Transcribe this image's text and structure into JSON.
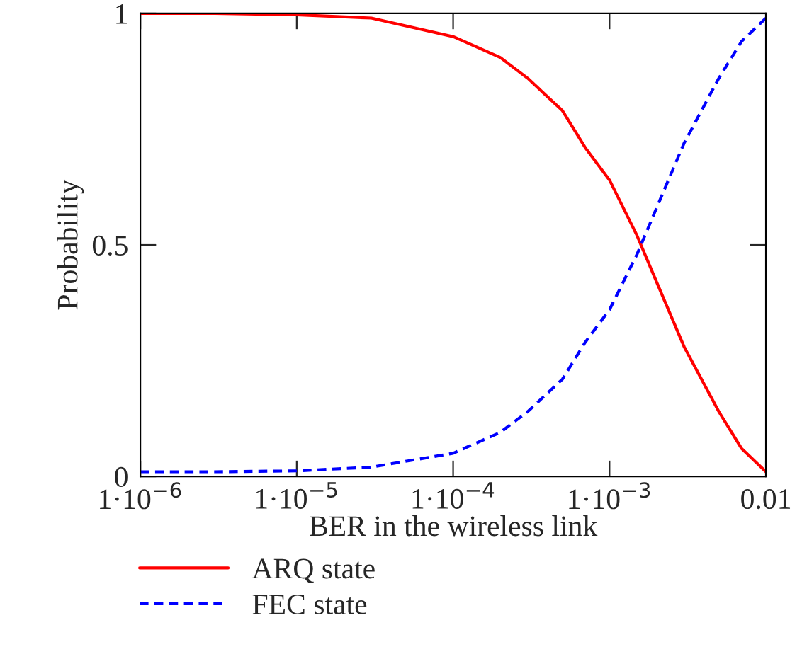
{
  "chart_data": {
    "type": "line",
    "xlabel": "BER in the wireless link",
    "ylabel": "Probability",
    "log": "x",
    "x": [
      1e-06,
      3e-06,
      1e-05,
      3e-05,
      0.0001,
      0.0002,
      0.0003,
      0.0005,
      0.0007,
      0.001,
      0.0015,
      0.002,
      0.003,
      0.005,
      0.007,
      0.01
    ],
    "series": [
      {
        "name": "ARQ state",
        "color": "#ff0000",
        "line_style": "solid",
        "values": [
          1.0,
          1.0,
          0.997,
          0.99,
          0.95,
          0.905,
          0.86,
          0.79,
          0.71,
          0.64,
          0.52,
          0.42,
          0.28,
          0.14,
          0.06,
          0.01
        ]
      },
      {
        "name": "FEC state",
        "color": "#0000ff",
        "line_style": "dashed",
        "values": [
          0.01,
          0.01,
          0.012,
          0.02,
          0.05,
          0.095,
          0.14,
          0.21,
          0.29,
          0.36,
          0.48,
          0.58,
          0.72,
          0.86,
          0.94,
          0.99
        ]
      }
    ],
    "xlim": [
      1e-06,
      0.01
    ],
    "ylim": [
      0,
      1
    ],
    "xticks": [
      {
        "value": 1e-06,
        "label": "1·10$^{−6}$"
      },
      {
        "value": 1e-05,
        "label": "1·10$^{−5}$"
      },
      {
        "value": 0.0001,
        "label": "1·10$^{−4}$"
      },
      {
        "value": 0.001,
        "label": "1·10$^{−3}$"
      },
      0.01
    ],
    "yticks": [
      0,
      0.5,
      1
    ],
    "grid": false,
    "legend": "bottom",
    "marker": "none"
  }
}
